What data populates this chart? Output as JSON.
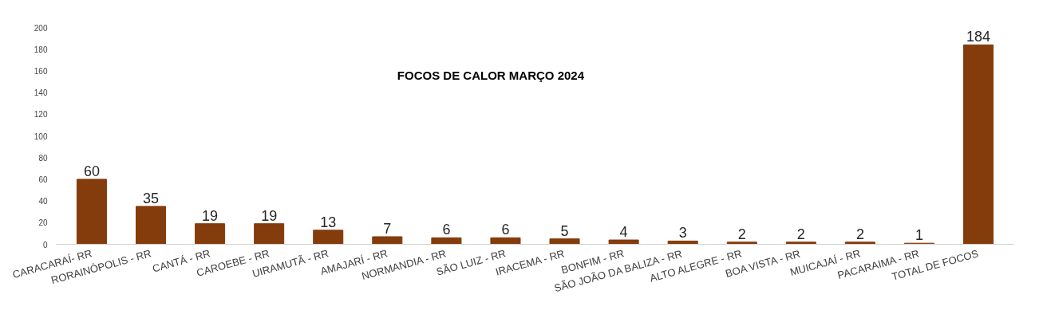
{
  "chart_data": {
    "type": "bar",
    "title": "FOCOS DE CALOR MARÇO 2024",
    "categories": [
      "CARACARAÍ- RR",
      "RORAINÓPOLIS - RR",
      "CANTÁ - RR",
      "CAROEBE - RR",
      "UIRAMUTÃ - RR",
      "AMAJARÍ - RR",
      "NORMANDIA - RR",
      "SÃO LUIZ - RR",
      "IRACEMA - RR",
      "BONFIM - RR",
      "SÃO JOÃO DA BALIZA - RR",
      "ALTO ALEGRE - RR",
      "BOA VISTA - RR",
      "MUICAJAÍ - RR",
      "PACARAIMA - RR",
      "TOTAL DE FOCOS"
    ],
    "values": [
      60,
      35,
      19,
      19,
      13,
      7,
      6,
      6,
      5,
      4,
      3,
      2,
      2,
      2,
      1,
      184
    ],
    "color": "#843c0c",
    "ylim": [
      0,
      200
    ],
    "yticks": [
      0,
      20,
      40,
      60,
      80,
      100,
      120,
      140,
      160,
      180,
      200
    ],
    "grid": false,
    "data_labels": true
  }
}
